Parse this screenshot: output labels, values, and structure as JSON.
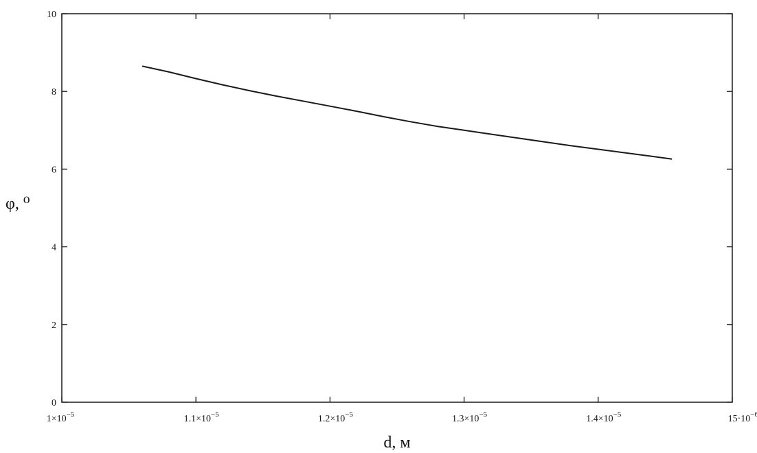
{
  "chart_data": {
    "type": "line",
    "title": "",
    "xlabel": "d, м",
    "ylabel": "φ, ⁰",
    "xlim": [
      1e-05,
      1.5e-05
    ],
    "ylim": [
      0,
      10
    ],
    "grid": false,
    "x_ticks": [
      {
        "value": 1e-05,
        "mantissa": "1×10",
        "exp": "−5"
      },
      {
        "value": 1.1e-05,
        "mantissa": "1.1×10",
        "exp": "−5"
      },
      {
        "value": 1.2e-05,
        "mantissa": "1.2×10",
        "exp": "−5"
      },
      {
        "value": 1.3e-05,
        "mantissa": "1.3×10",
        "exp": "−5"
      },
      {
        "value": 1.4e-05,
        "mantissa": "1.4×10",
        "exp": "−5"
      },
      {
        "value": 1.5e-05,
        "mantissa": "15·10",
        "exp": "−6"
      }
    ],
    "y_ticks": [
      0,
      2,
      4,
      6,
      8,
      10
    ],
    "series": [
      {
        "x": [
          1.06e-05,
          1.08e-05,
          1.1e-05,
          1.12e-05,
          1.14e-05,
          1.16e-05,
          1.18e-05,
          1.2e-05,
          1.22e-05,
          1.24e-05,
          1.26e-05,
          1.28e-05,
          1.3e-05,
          1.32e-05,
          1.34e-05,
          1.36e-05,
          1.38e-05,
          1.4e-05,
          1.42e-05,
          1.44e-05,
          1.455e-05
        ],
        "y": [
          8.65,
          8.5,
          8.33,
          8.17,
          8.02,
          7.88,
          7.75,
          7.62,
          7.49,
          7.35,
          7.22,
          7.1,
          7.0,
          6.9,
          6.8,
          6.7,
          6.6,
          6.51,
          6.42,
          6.33,
          6.26
        ],
        "color": "#1a1a1a"
      }
    ]
  }
}
